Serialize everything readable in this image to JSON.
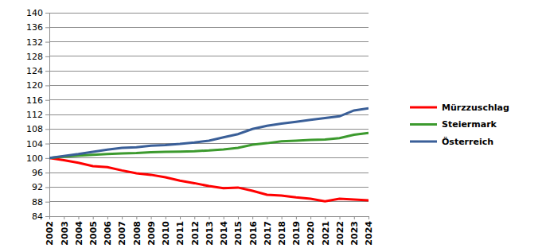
{
  "chart_data": {
    "type": "line",
    "categories": [
      "2002",
      "2003",
      "2004",
      "2005",
      "2006",
      "2007",
      "2008",
      "2009",
      "2010",
      "2011",
      "2012",
      "2013",
      "2014",
      "2015",
      "2016",
      "2017",
      "2018",
      "2019",
      "2020",
      "2021",
      "2022",
      "2023",
      "2024"
    ],
    "series": [
      {
        "name": "Mürzzuschlag",
        "color": "#ff0000",
        "values": [
          100,
          99.4,
          98.7,
          97.8,
          97.5,
          96.6,
          95.8,
          95.4,
          94.7,
          93.8,
          93.1,
          92.3,
          91.7,
          91.9,
          91.0,
          89.9,
          89.7,
          89.2,
          88.8,
          88.1,
          88.8,
          88.6,
          88.4
        ]
      },
      {
        "name": "Steiermark",
        "color": "#3c9a2e",
        "values": [
          100,
          100.4,
          100.7,
          100.9,
          101.1,
          101.3,
          101.4,
          101.6,
          101.7,
          101.8,
          101.9,
          102.1,
          102.4,
          102.8,
          103.7,
          104.1,
          104.6,
          104.8,
          105.0,
          105.1,
          105.5,
          106.4,
          106.9
        ]
      },
      {
        "name": "Österreich",
        "color": "#3a5f98",
        "values": [
          100,
          100.6,
          101.1,
          101.7,
          102.3,
          102.8,
          103.0,
          103.4,
          103.6,
          103.9,
          104.3,
          104.8,
          105.7,
          106.6,
          108.0,
          108.9,
          109.5,
          110.0,
          110.5,
          111.0,
          111.5,
          113.1,
          113.7
        ]
      }
    ],
    "ylim": [
      84,
      140
    ],
    "yticks": [
      84,
      88,
      92,
      96,
      100,
      104,
      108,
      112,
      116,
      120,
      124,
      128,
      132,
      136,
      140
    ],
    "grid": true,
    "legend": "right"
  }
}
